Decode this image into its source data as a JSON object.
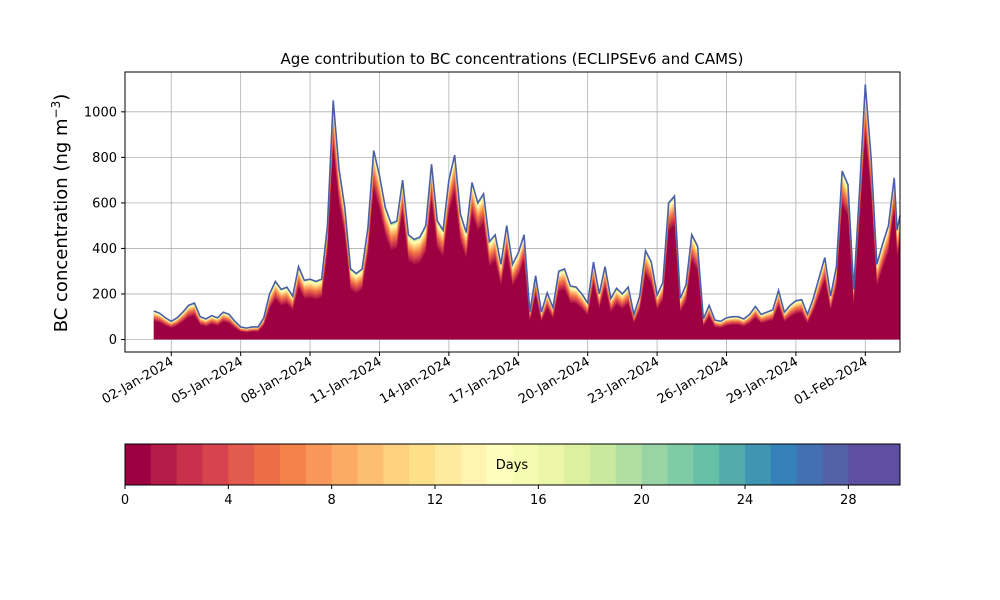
{
  "chart_data": {
    "type": "area",
    "title": "Age contribution to BC concentrations (ECLIPSEv6 and CAMS)",
    "xlabel": "",
    "ylabel": "BC concentration (ng m",
    "ylabel_superscript": "−3",
    "ylabel_suffix": ")",
    "x_ticks": [
      "02-Jan-2024",
      "05-Jan-2024",
      "08-Jan-2024",
      "11-Jan-2024",
      "14-Jan-2024",
      "17-Jan-2024",
      "20-Jan-2024",
      "23-Jan-2024",
      "26-Jan-2024",
      "29-Jan-2024",
      "01-Feb-2024"
    ],
    "x_range": [
      "2023-12-31T00:00",
      "2024-02-02T12:00"
    ],
    "y_ticks": [
      0,
      200,
      400,
      600,
      800,
      1000
    ],
    "ylim": [
      -55,
      1175
    ],
    "grid": true,
    "stacked_by": "age in days (0-30), colored bands",
    "series_total": [
      [
        "2024-01-01T06:00",
        125
      ],
      [
        "2024-01-01T12:00",
        115
      ],
      [
        "2024-01-01T18:00",
        95
      ],
      [
        "2024-01-02T00:00",
        80
      ],
      [
        "2024-01-02T06:00",
        95
      ],
      [
        "2024-01-02T12:00",
        120
      ],
      [
        "2024-01-02T18:00",
        150
      ],
      [
        "2024-01-03T00:00",
        160
      ],
      [
        "2024-01-03T06:00",
        100
      ],
      [
        "2024-01-03T12:00",
        90
      ],
      [
        "2024-01-03T18:00",
        105
      ],
      [
        "2024-01-04T00:00",
        95
      ],
      [
        "2024-01-04T06:00",
        120
      ],
      [
        "2024-01-04T12:00",
        110
      ],
      [
        "2024-01-04T18:00",
        80
      ],
      [
        "2024-01-05T00:00",
        55
      ],
      [
        "2024-01-05T06:00",
        50
      ],
      [
        "2024-01-05T12:00",
        55
      ],
      [
        "2024-01-05T18:00",
        55
      ],
      [
        "2024-01-06T00:00",
        95
      ],
      [
        "2024-01-06T06:00",
        200
      ],
      [
        "2024-01-06T12:00",
        255
      ],
      [
        "2024-01-06T18:00",
        220
      ],
      [
        "2024-01-07T00:00",
        230
      ],
      [
        "2024-01-07T06:00",
        190
      ],
      [
        "2024-01-07T12:00",
        320
      ],
      [
        "2024-01-07T18:00",
        260
      ],
      [
        "2024-01-08T00:00",
        265
      ],
      [
        "2024-01-08T06:00",
        255
      ],
      [
        "2024-01-08T12:00",
        265
      ],
      [
        "2024-01-08T18:00",
        500
      ],
      [
        "2024-01-09T00:00",
        1050
      ],
      [
        "2024-01-09T06:00",
        750
      ],
      [
        "2024-01-09T12:00",
        580
      ],
      [
        "2024-01-09T18:00",
        310
      ],
      [
        "2024-01-10T00:00",
        290
      ],
      [
        "2024-01-10T06:00",
        310
      ],
      [
        "2024-01-10T12:00",
        490
      ],
      [
        "2024-01-10T18:00",
        830
      ],
      [
        "2024-01-11T00:00",
        720
      ],
      [
        "2024-01-11T06:00",
        580
      ],
      [
        "2024-01-11T12:00",
        510
      ],
      [
        "2024-01-11T18:00",
        520
      ],
      [
        "2024-01-12T00:00",
        700
      ],
      [
        "2024-01-12T06:00",
        460
      ],
      [
        "2024-01-12T12:00",
        440
      ],
      [
        "2024-01-12T18:00",
        450
      ],
      [
        "2024-01-13T00:00",
        500
      ],
      [
        "2024-01-13T06:00",
        770
      ],
      [
        "2024-01-13T12:00",
        520
      ],
      [
        "2024-01-13T18:00",
        480
      ],
      [
        "2024-01-14T00:00",
        700
      ],
      [
        "2024-01-14T06:00",
        810
      ],
      [
        "2024-01-14T12:00",
        550
      ],
      [
        "2024-01-14T18:00",
        470
      ],
      [
        "2024-01-15T00:00",
        690
      ],
      [
        "2024-01-15T06:00",
        600
      ],
      [
        "2024-01-15T12:00",
        640
      ],
      [
        "2024-01-15T18:00",
        430
      ],
      [
        "2024-01-16T00:00",
        460
      ],
      [
        "2024-01-16T06:00",
        330
      ],
      [
        "2024-01-16T12:00",
        500
      ],
      [
        "2024-01-16T18:00",
        330
      ],
      [
        "2024-01-17T00:00",
        380
      ],
      [
        "2024-01-17T06:00",
        460
      ],
      [
        "2024-01-17T12:00",
        120
      ],
      [
        "2024-01-17T18:00",
        280
      ],
      [
        "2024-01-18T00:00",
        120
      ],
      [
        "2024-01-18T06:00",
        205
      ],
      [
        "2024-01-18T12:00",
        140
      ],
      [
        "2024-01-18T18:00",
        300
      ],
      [
        "2024-01-19T00:00",
        310
      ],
      [
        "2024-01-19T06:00",
        235
      ],
      [
        "2024-01-19T12:00",
        230
      ],
      [
        "2024-01-19T18:00",
        200
      ],
      [
        "2024-01-20T00:00",
        160
      ],
      [
        "2024-01-20T06:00",
        340
      ],
      [
        "2024-01-20T12:00",
        200
      ],
      [
        "2024-01-20T18:00",
        320
      ],
      [
        "2024-01-21T00:00",
        180
      ],
      [
        "2024-01-21T06:00",
        225
      ],
      [
        "2024-01-21T12:00",
        200
      ],
      [
        "2024-01-21T18:00",
        230
      ],
      [
        "2024-01-22T00:00",
        110
      ],
      [
        "2024-01-22T06:00",
        190
      ],
      [
        "2024-01-22T12:00",
        390
      ],
      [
        "2024-01-22T18:00",
        340
      ],
      [
        "2024-01-23T00:00",
        195
      ],
      [
        "2024-01-23T06:00",
        250
      ],
      [
        "2024-01-23T12:00",
        600
      ],
      [
        "2024-01-23T18:00",
        630
      ],
      [
        "2024-01-24T00:00",
        180
      ],
      [
        "2024-01-24T06:00",
        240
      ],
      [
        "2024-01-24T12:00",
        460
      ],
      [
        "2024-01-24T18:00",
        410
      ],
      [
        "2024-01-25T00:00",
        90
      ],
      [
        "2024-01-25T06:00",
        150
      ],
      [
        "2024-01-25T12:00",
        85
      ],
      [
        "2024-01-25T18:00",
        80
      ],
      [
        "2024-01-26T00:00",
        95
      ],
      [
        "2024-01-26T06:00",
        100
      ],
      [
        "2024-01-26T12:00",
        100
      ],
      [
        "2024-01-26T18:00",
        90
      ],
      [
        "2024-01-27T00:00",
        110
      ],
      [
        "2024-01-27T06:00",
        145
      ],
      [
        "2024-01-27T12:00",
        110
      ],
      [
        "2024-01-27T18:00",
        120
      ],
      [
        "2024-01-28T00:00",
        130
      ],
      [
        "2024-01-28T06:00",
        215
      ],
      [
        "2024-01-28T12:00",
        120
      ],
      [
        "2024-01-28T18:00",
        150
      ],
      [
        "2024-01-29T00:00",
        170
      ],
      [
        "2024-01-29T06:00",
        175
      ],
      [
        "2024-01-29T12:00",
        110
      ],
      [
        "2024-01-29T18:00",
        180
      ],
      [
        "2024-01-30T00:00",
        270
      ],
      [
        "2024-01-30T06:00",
        360
      ],
      [
        "2024-01-30T12:00",
        190
      ],
      [
        "2024-01-30T18:00",
        320
      ],
      [
        "2024-01-31T00:00",
        740
      ],
      [
        "2024-01-31T06:00",
        680
      ],
      [
        "2024-01-31T12:00",
        220
      ],
      [
        "2024-01-31T18:00",
        650
      ],
      [
        "2024-02-01T00:00",
        1120
      ],
      [
        "2024-02-01T06:00",
        800
      ],
      [
        "2024-02-01T12:00",
        330
      ],
      [
        "2024-02-01T18:00",
        420
      ],
      [
        "2024-02-02T00:00",
        500
      ],
      [
        "2024-02-02T06:00",
        710
      ],
      [
        "2024-02-02T09:00",
        480
      ],
      [
        "2024-02-02T12:00",
        545
      ]
    ],
    "colorbar": {
      "label": "Days",
      "ticks": [
        0,
        4,
        8,
        12,
        16,
        20,
        24,
        28
      ],
      "range": [
        0,
        30
      ],
      "colors": [
        "#9e0142",
        "#b41c47",
        "#c9304c",
        "#d8444e",
        "#e25b4c",
        "#ec6e48",
        "#f5814b",
        "#f9975a",
        "#fcab66",
        "#fdbe72",
        "#fdd17f",
        "#fee08b",
        "#feeb9d",
        "#fff5b0",
        "#fffebe",
        "#f6fbb2",
        "#ebf7a6",
        "#dcf09e",
        "#c8e99e",
        "#b1dfa3",
        "#98d4a4",
        "#7ecba4",
        "#65c0a5",
        "#52aba9",
        "#3f96b2",
        "#3582ba",
        "#4370b3",
        "#5361a8",
        "#5e4fa2",
        "#5e4fa2"
      ]
    }
  }
}
